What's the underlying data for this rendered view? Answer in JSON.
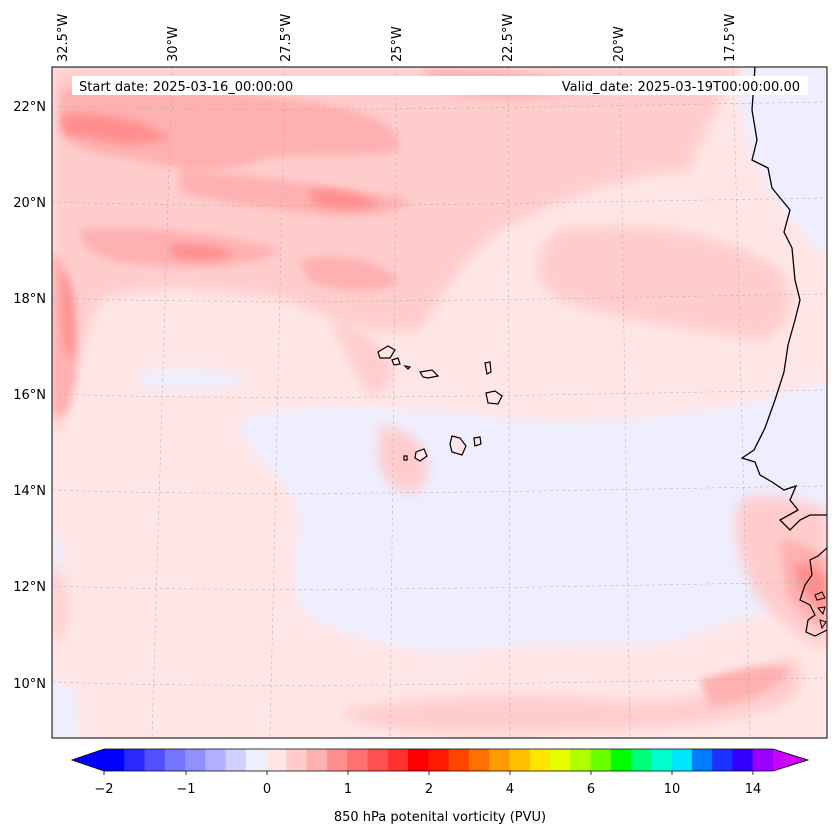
{
  "map": {
    "start_date_label": "Start date: 2025-03-16_00:00:00",
    "valid_date_label": "Valid_date: 2025-03-19T00:00:00.00",
    "longitude_labels": [
      "32.5°W",
      "30°W",
      "27.5°W",
      "25°W",
      "22.5°W",
      "20°W",
      "17.5°W"
    ],
    "latitude_labels": [
      "22°N",
      "20°N",
      "18°N",
      "16°N",
      "14°N",
      "12°N",
      "10°N"
    ],
    "gridlines": true,
    "coastline_color": "#000000"
  },
  "colorbar": {
    "label": "850 hPa potenital vorticity (PVU)",
    "tick_labels": [
      "−2",
      "−1",
      "0",
      "1",
      "2",
      "4",
      "6",
      "10",
      "14"
    ],
    "colors": [
      "#0000ff",
      "#2a2aff",
      "#5050ff",
      "#7575ff",
      "#9090ff",
      "#b0b0ff",
      "#d0d0ff",
      "#eeeeff",
      "#ffe6e6",
      "#ffcccc",
      "#ffb0b0",
      "#ff8f8f",
      "#ff7070",
      "#ff5050",
      "#ff3030",
      "#ff0000",
      "#ff1a00",
      "#ff4500",
      "#ff7000",
      "#ff9a00",
      "#ffc000",
      "#ffe600",
      "#e6ff00",
      "#b0ff00",
      "#6aff00",
      "#00ff00",
      "#00ff7a",
      "#00ffcc",
      "#00e6ff",
      "#0080ff",
      "#1e30ff",
      "#3300ff",
      "#9900ff"
    ],
    "extend_low_color": "#0000ff",
    "extend_high_color": "#cc00ff"
  }
}
